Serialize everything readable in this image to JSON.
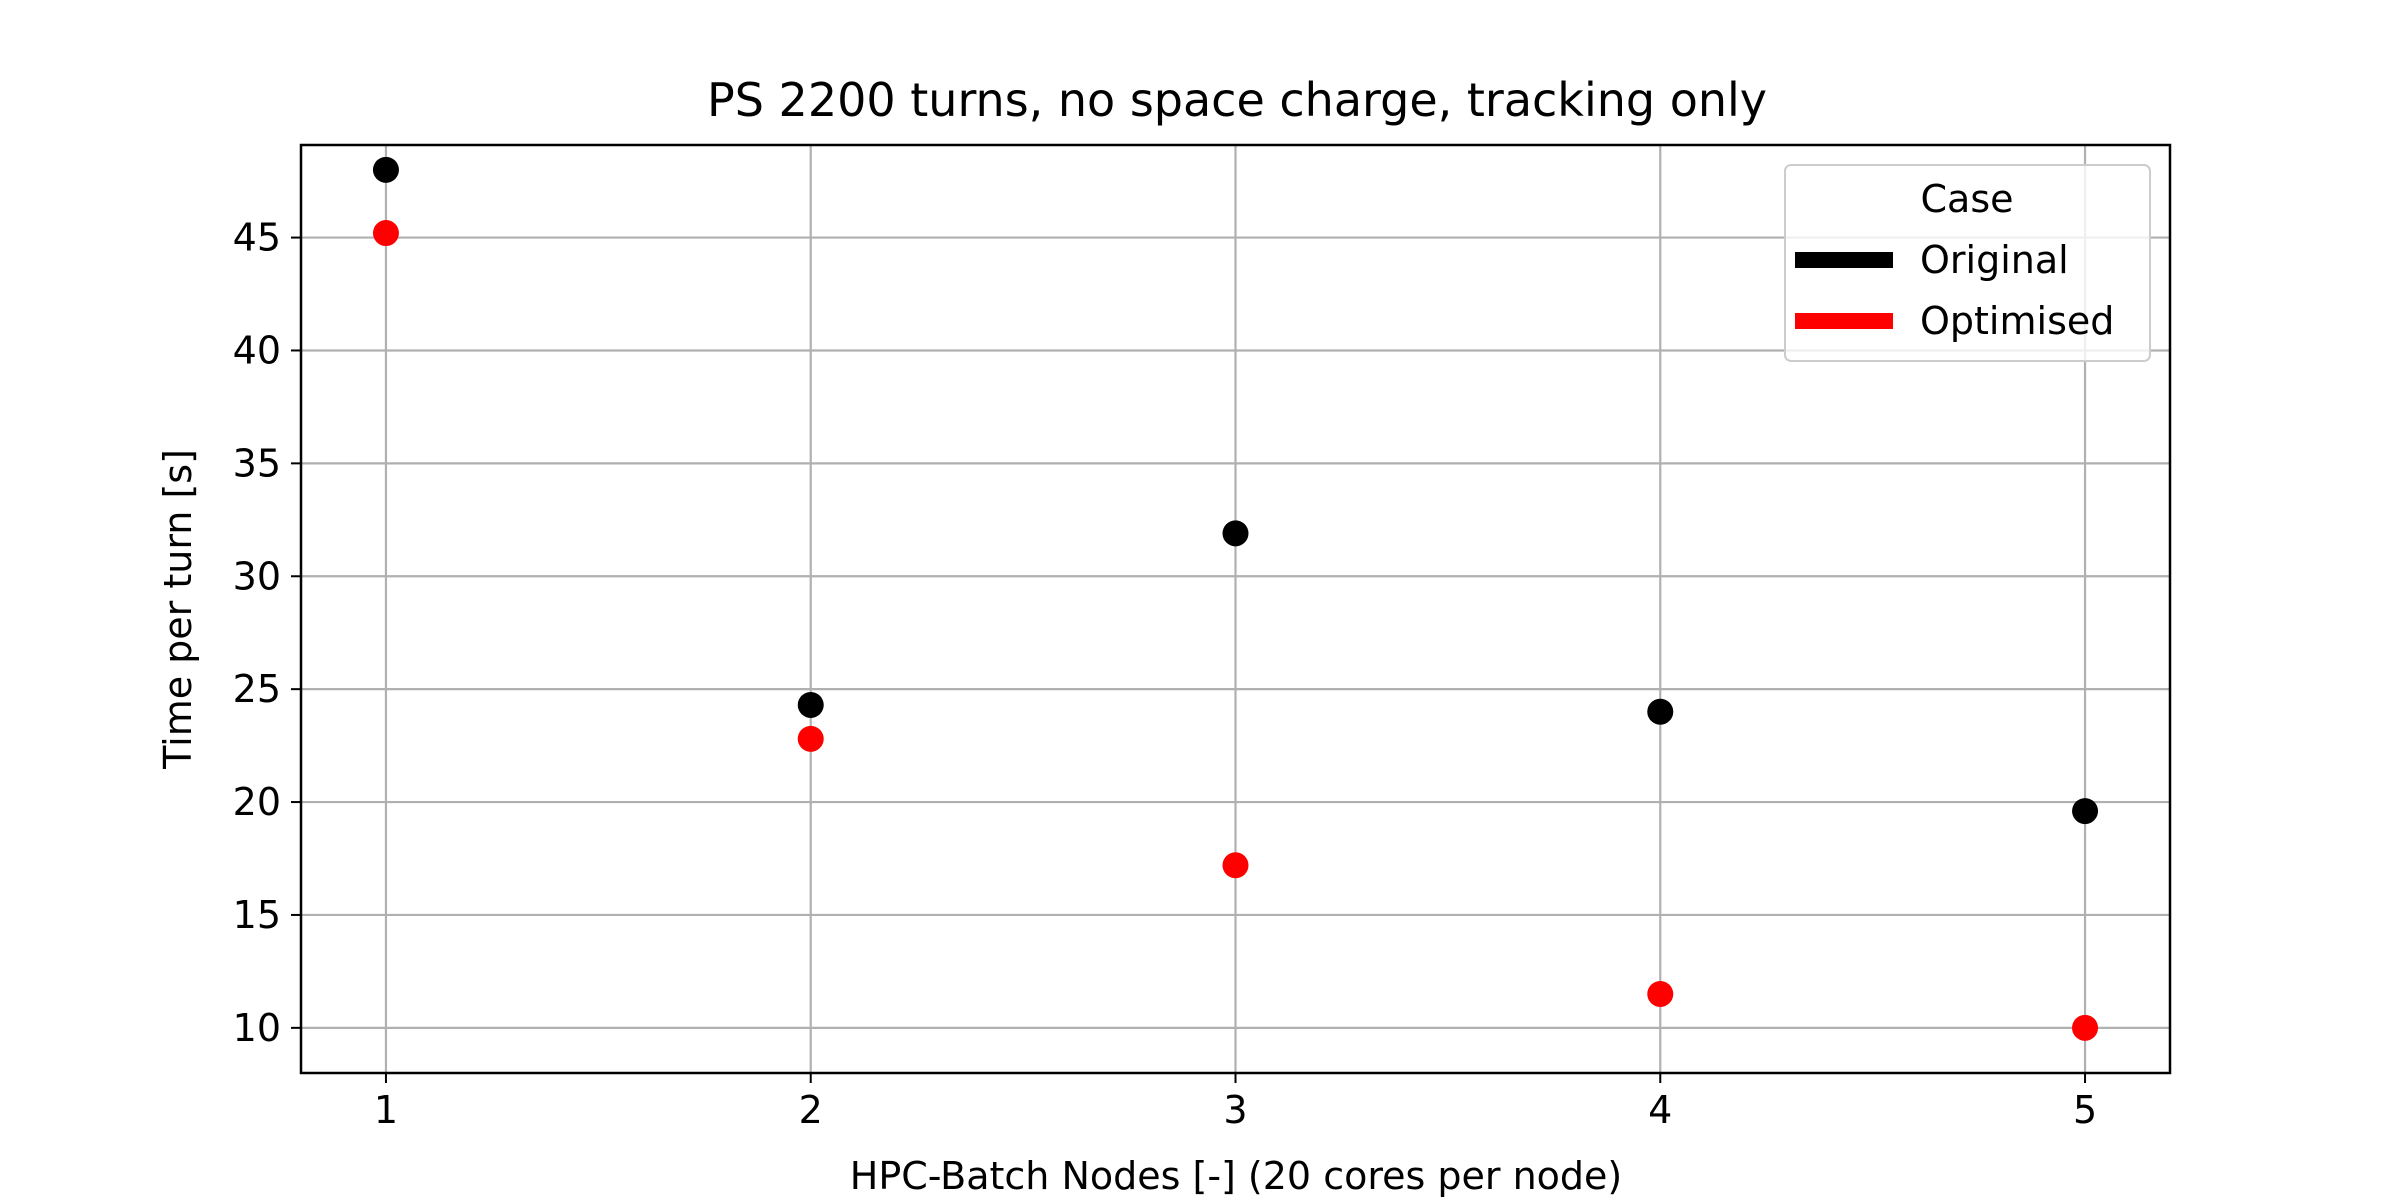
{
  "chart_data": {
    "type": "scatter",
    "title": "PS 2200 turns, no space charge, tracking only",
    "xlabel": "HPC-Batch Nodes [-] (20 cores per node)",
    "ylabel": "Time per turn [s]",
    "x": [
      1,
      2,
      3,
      4,
      5
    ],
    "xticks": [
      "1",
      "2",
      "3",
      "4",
      "5"
    ],
    "yticks": [
      "10",
      "15",
      "20",
      "25",
      "30",
      "35",
      "40",
      "45"
    ],
    "xlim": [
      0.8,
      5.2
    ],
    "ylim": [
      8,
      49.1
    ],
    "grid": true,
    "legend": {
      "title": "Case",
      "placement": "top-right"
    },
    "series": [
      {
        "name": "Original",
        "color": "#000000",
        "values": [
          48.0,
          24.3,
          31.9,
          24.0,
          19.6
        ]
      },
      {
        "name": "Optimised",
        "color": "#ff0000",
        "values": [
          45.2,
          22.8,
          17.2,
          11.5,
          10.0
        ]
      }
    ]
  }
}
